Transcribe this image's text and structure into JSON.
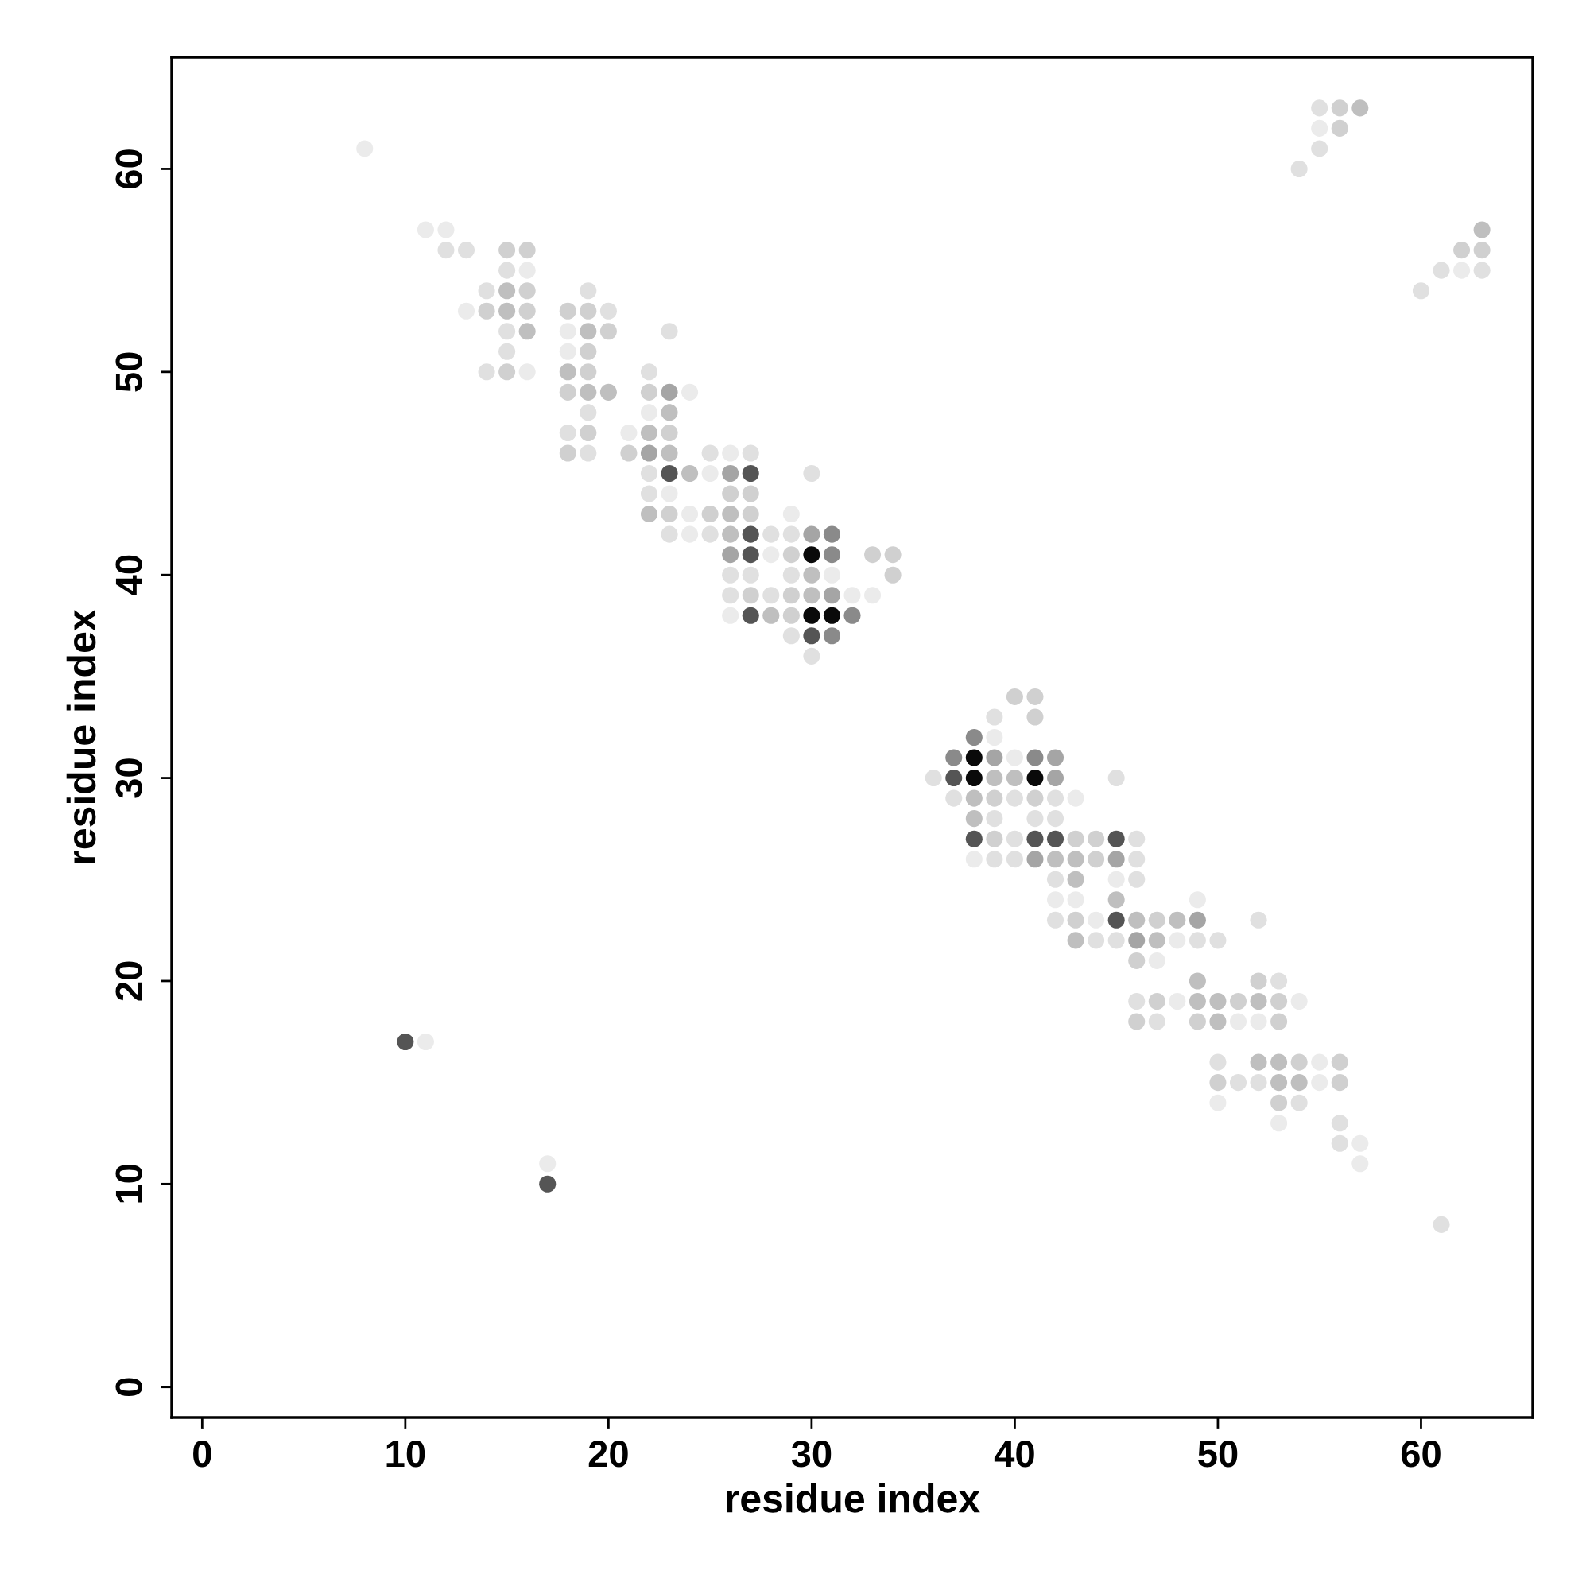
{
  "chart_data": {
    "type": "scatter",
    "xlabel": "residue index",
    "ylabel": "residue index",
    "xlim": [
      -1.5,
      65.5
    ],
    "ylim": [
      -1.5,
      65.5
    ],
    "xticks": [
      0,
      10,
      20,
      30,
      40,
      50,
      60
    ],
    "yticks": [
      0,
      10,
      20,
      30,
      40,
      50,
      60
    ],
    "marker": "circle",
    "grid": false,
    "legend": false,
    "series": [
      {
        "color": "#ebebeb",
        "x": [
          11,
          12,
          16,
          13,
          18,
          18,
          16,
          22,
          21,
          24,
          26,
          25,
          23,
          24,
          24,
          28,
          31,
          32,
          33,
          26,
          29,
          8,
          55,
          62,
          39,
          40,
          43,
          38,
          42,
          43,
          45,
          49,
          44,
          48,
          47,
          48,
          54,
          51,
          52,
          55,
          55,
          50,
          53,
          57,
          57,
          11,
          17
        ],
        "values": [
          57,
          57,
          55,
          53,
          52,
          51,
          50,
          48,
          47,
          49,
          46,
          45,
          44,
          43,
          42,
          41,
          40,
          39,
          39,
          38,
          43,
          61,
          62,
          55,
          32,
          31,
          29,
          26,
          24,
          24,
          25,
          24,
          23,
          22,
          21,
          19,
          19,
          18,
          18,
          16,
          15,
          14,
          13,
          12,
          11,
          17,
          11
        ]
      },
      {
        "color": "#e0e0e0",
        "x": [
          12,
          13,
          15,
          14,
          19,
          20,
          15,
          23,
          15,
          14,
          22,
          19,
          18,
          19,
          25,
          27,
          22,
          30,
          22,
          23,
          25,
          28,
          29,
          26,
          27,
          29,
          26,
          28,
          29,
          30,
          55,
          55,
          54,
          61,
          63,
          60,
          39,
          36,
          45,
          37,
          40,
          42,
          39,
          41,
          42,
          40,
          46,
          39,
          40,
          46,
          42,
          46,
          42,
          44,
          45,
          49,
          50,
          52,
          53,
          46,
          47,
          50,
          51,
          52,
          54,
          56,
          56,
          61
        ],
        "values": [
          56,
          56,
          55,
          54,
          54,
          53,
          52,
          52,
          51,
          50,
          50,
          48,
          47,
          46,
          46,
          46,
          45,
          45,
          44,
          42,
          42,
          42,
          42,
          40,
          40,
          40,
          39,
          39,
          37,
          36,
          63,
          61,
          60,
          55,
          55,
          54,
          33,
          30,
          30,
          29,
          29,
          29,
          28,
          28,
          28,
          27,
          27,
          26,
          26,
          26,
          25,
          25,
          23,
          22,
          22,
          22,
          22,
          23,
          20,
          19,
          18,
          16,
          15,
          15,
          14,
          13,
          12,
          8
        ]
      },
      {
        "color": "#d0d0d0",
        "x": [
          15,
          16,
          16,
          14,
          16,
          18,
          19,
          19,
          20,
          15,
          19,
          18,
          22,
          19,
          23,
          18,
          21,
          26,
          27,
          23,
          25,
          27,
          29,
          33,
          34,
          34,
          27,
          29,
          29,
          56,
          56,
          62,
          63,
          40,
          41,
          41,
          39,
          41,
          39,
          43,
          44,
          44,
          43,
          47,
          46,
          47,
          51,
          53,
          46,
          49,
          53,
          52,
          54,
          56,
          50,
          56,
          53
        ],
        "values": [
          56,
          56,
          54,
          53,
          53,
          53,
          53,
          51,
          52,
          50,
          50,
          49,
          49,
          47,
          47,
          46,
          46,
          44,
          44,
          43,
          43,
          43,
          41,
          41,
          41,
          40,
          39,
          39,
          38,
          63,
          62,
          56,
          56,
          34,
          34,
          33,
          29,
          29,
          27,
          27,
          27,
          26,
          23,
          23,
          21,
          19,
          19,
          19,
          18,
          18,
          18,
          20,
          16,
          16,
          15,
          15,
          14
        ]
      },
      {
        "color": "#bfbfbf",
        "x": [
          15,
          15,
          16,
          19,
          18,
          19,
          20,
          23,
          22,
          23,
          24,
          22,
          26,
          26,
          30,
          30,
          28,
          57,
          63,
          39,
          40,
          38,
          38,
          42,
          43,
          43,
          45,
          46,
          48,
          43,
          47,
          49,
          49,
          50,
          52,
          50,
          52,
          53,
          53,
          54
        ],
        "values": [
          54,
          53,
          52,
          52,
          50,
          49,
          49,
          48,
          47,
          46,
          45,
          43,
          43,
          42,
          40,
          39,
          38,
          63,
          57,
          30,
          30,
          29,
          28,
          26,
          26,
          25,
          24,
          23,
          23,
          22,
          22,
          20,
          19,
          19,
          19,
          18,
          16,
          16,
          15,
          15
        ]
      },
      {
        "color": "#a5a5a5",
        "x": [
          23,
          22,
          26,
          30,
          26,
          31,
          39,
          42,
          42,
          41,
          45,
          49,
          46
        ],
        "values": [
          49,
          46,
          45,
          42,
          41,
          39,
          31,
          31,
          30,
          26,
          26,
          23,
          22
        ]
      },
      {
        "color": "#8a8a8a",
        "x": [
          31,
          31,
          32,
          31,
          38,
          37,
          41
        ],
        "values": [
          42,
          41,
          38,
          37,
          32,
          31,
          31
        ]
      },
      {
        "color": "#555555",
        "x": [
          23,
          27,
          27,
          27,
          27,
          30,
          37,
          38,
          41,
          42,
          45,
          45,
          10,
          17
        ],
        "values": [
          45,
          45,
          42,
          41,
          38,
          37,
          30,
          27,
          27,
          27,
          27,
          23,
          17,
          10
        ]
      },
      {
        "color": "#0a0a0a",
        "x": [
          30,
          30,
          31,
          38,
          38,
          41
        ],
        "values": [
          41,
          38,
          38,
          31,
          30,
          30
        ]
      }
    ]
  }
}
